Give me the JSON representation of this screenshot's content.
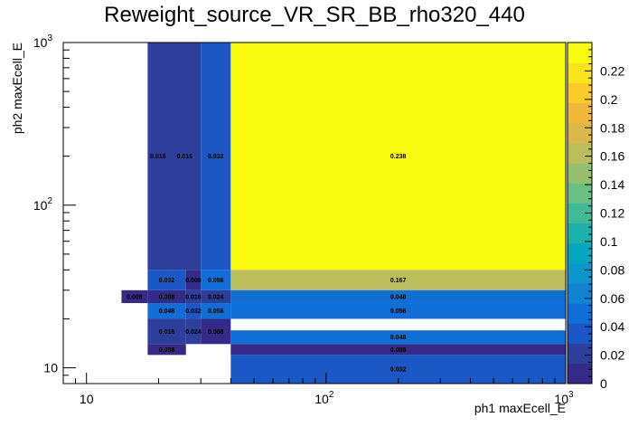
{
  "chart_data": {
    "type": "heatmap",
    "title": "Reweight_source_VR_SR_BB_rho320_440",
    "xlabel": "ph1 maxEcell_E",
    "ylabel": "ph2 maxEcell_E",
    "x_scale": "log",
    "y_scale": "log",
    "xlim": [
      8,
      1000
    ],
    "ylim": [
      8,
      1000
    ],
    "zlim": [
      0,
      0.24
    ],
    "x_ticks": [
      {
        "value": 10,
        "base": "10",
        "exp": ""
      },
      {
        "value": 100,
        "base": "10",
        "exp": "2"
      },
      {
        "value": 1000,
        "base": "10",
        "exp": "3"
      }
    ],
    "y_ticks": [
      {
        "value": 10,
        "base": "10",
        "exp": ""
      },
      {
        "value": 100,
        "base": "10",
        "exp": "2"
      },
      {
        "value": 1000,
        "base": "10",
        "exp": "3"
      }
    ],
    "colorbar_ticks": [
      "0",
      "0.02",
      "0.04",
      "0.06",
      "0.08",
      "0.1",
      "0.12",
      "0.14",
      "0.16",
      "0.18",
      "0.2",
      "0.22"
    ],
    "colorbar_values": [
      0,
      0.02,
      0.04,
      0.06,
      0.08,
      0.1,
      0.12,
      0.14,
      0.16,
      0.18,
      0.2,
      0.22
    ],
    "palette": [
      "#352a87",
      "#2e3e9b",
      "#1b58c6",
      "#0f6fd6",
      "#1283d3",
      "#0b96cc",
      "#04a6bf",
      "#1cb2ac",
      "#3fbb98",
      "#6bbf83",
      "#96c06d",
      "#bcbe5c",
      "#dab949",
      "#f1b83a",
      "#fbcb2c",
      "#f9e61a",
      "#f9fb0e"
    ],
    "x_edges": [
      14,
      18,
      22,
      26,
      30,
      40,
      1000
    ],
    "y_edges": [
      12,
      14,
      17,
      20,
      25,
      30,
      40,
      1000
    ],
    "cells": [
      {
        "x0": 18,
        "x1": 22,
        "y0": 40,
        "y1": 1000,
        "value": 0.016,
        "label": "0.016"
      },
      {
        "x0": 22,
        "x1": 30,
        "y0": 40,
        "y1": 1000,
        "value": 0.016,
        "label": "0.016"
      },
      {
        "x0": 30,
        "x1": 40,
        "y0": 40,
        "y1": 1000,
        "value": 0.032,
        "label": "0.032"
      },
      {
        "x0": 40,
        "x1": 1000,
        "y0": 40,
        "y1": 1000,
        "value": 0.238,
        "label": "0.238"
      },
      {
        "x0": 18,
        "x1": 26,
        "y0": 30,
        "y1": 40,
        "value": 0.032,
        "label": "0.032"
      },
      {
        "x0": 26,
        "x1": 30,
        "y0": 30,
        "y1": 40,
        "value": 0.008,
        "label": "0.008"
      },
      {
        "x0": 30,
        "x1": 40,
        "y0": 30,
        "y1": 40,
        "value": 0.056,
        "label": "0.056"
      },
      {
        "x0": 40,
        "x1": 1000,
        "y0": 30,
        "y1": 40,
        "value": 0.167,
        "label": "0.167"
      },
      {
        "x0": 14,
        "x1": 18,
        "y0": 25,
        "y1": 30,
        "value": 0.008,
        "label": "0.008"
      },
      {
        "x0": 18,
        "x1": 26,
        "y0": 25,
        "y1": 30,
        "value": 0.008,
        "label": "0.008"
      },
      {
        "x0": 26,
        "x1": 30,
        "y0": 25,
        "y1": 30,
        "value": 0.016,
        "label": "0.016"
      },
      {
        "x0": 30,
        "x1": 40,
        "y0": 25,
        "y1": 30,
        "value": 0.024,
        "label": "0.024"
      },
      {
        "x0": 40,
        "x1": 1000,
        "y0": 25,
        "y1": 30,
        "value": 0.048,
        "label": "0.048"
      },
      {
        "x0": 18,
        "x1": 26,
        "y0": 20,
        "y1": 25,
        "value": 0.048,
        "label": "0.048"
      },
      {
        "x0": 26,
        "x1": 30,
        "y0": 20,
        "y1": 25,
        "value": 0.032,
        "label": "0.032"
      },
      {
        "x0": 30,
        "x1": 40,
        "y0": 20,
        "y1": 25,
        "value": 0.056,
        "label": "0.056"
      },
      {
        "x0": 40,
        "x1": 1000,
        "y0": 20,
        "y1": 25,
        "value": 0.056,
        "label": "0.056"
      },
      {
        "x0": 18,
        "x1": 26,
        "y0": 14,
        "y1": 20,
        "value": 0.016,
        "label": "0.016"
      },
      {
        "x0": 26,
        "x1": 30,
        "y0": 14,
        "y1": 20,
        "value": 0.024,
        "label": "0.024"
      },
      {
        "x0": 30,
        "x1": 40,
        "y0": 14,
        "y1": 20,
        "value": 0.008,
        "label": "0.008"
      },
      {
        "x0": 40,
        "x1": 1000,
        "y0": 14,
        "y1": 17,
        "value": 0.048,
        "label": "0.048"
      },
      {
        "x0": 18,
        "x1": 26,
        "y0": 12,
        "y1": 14,
        "value": 0.008,
        "label": "0.008"
      },
      {
        "x0": 40,
        "x1": 1000,
        "y0": 12,
        "y1": 14,
        "value": 0.008,
        "label": "0.008"
      },
      {
        "x0": 40,
        "x1": 1000,
        "y0": 8,
        "y1": 12,
        "value": 0.032,
        "label": "0.032"
      }
    ]
  }
}
